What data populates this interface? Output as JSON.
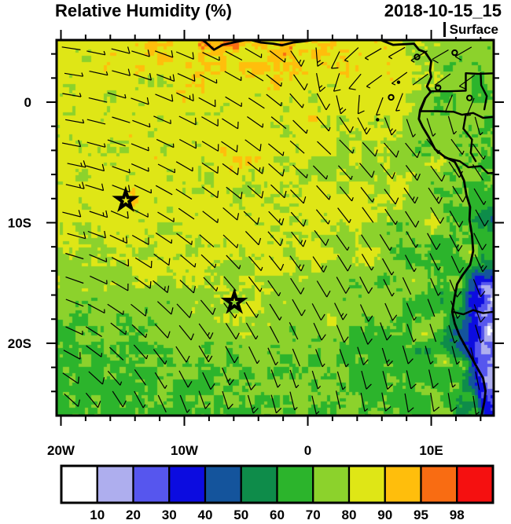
{
  "header": {
    "title": "Relative Humidity (%)",
    "datetime": "2018-10-15_15",
    "level": "Surface"
  },
  "chart_data": {
    "type": "heatmap",
    "title": "Relative Humidity (%)",
    "datetime": "2018-10-15_15",
    "level": "Surface",
    "proj": {
      "lon_min": -20.35,
      "lon_max": 15.06,
      "lat_min": -26.0,
      "lat_max": 5.15
    },
    "x_ticks": [
      {
        "v": -20,
        "label": "20W"
      },
      {
        "v": -10,
        "label": "10W"
      },
      {
        "v": 0,
        "label": "0"
      },
      {
        "v": 10,
        "label": "10E"
      }
    ],
    "y_ticks": [
      {
        "v": 0,
        "label": "0"
      },
      {
        "v": -10,
        "label": "10S"
      },
      {
        "v": -20,
        "label": "20S"
      }
    ],
    "minor_step": 2,
    "colorbar": {
      "labels": [
        10,
        20,
        30,
        40,
        50,
        60,
        70,
        80,
        90,
        95,
        98
      ],
      "colors": [
        "#ffffff",
        "#aeaeee",
        "#5656ee",
        "#0c0ce0",
        "#14549c",
        "#0e8c4a",
        "#2cb42c",
        "#8cd22c",
        "#dfe616",
        "#ffbe0c",
        "#f96c12",
        "#f51010"
      ]
    },
    "rh_points": [
      [
        -19.5,
        4.6,
        84
      ],
      [
        -16,
        3.5,
        85
      ],
      [
        -12.5,
        4.6,
        90
      ],
      [
        -9.5,
        4.0,
        88
      ],
      [
        -8,
        4.5,
        92
      ],
      [
        -5.5,
        4.8,
        94
      ],
      [
        -3.5,
        3.8,
        89
      ],
      [
        -2,
        4.4,
        92
      ],
      [
        1,
        4.7,
        93
      ],
      [
        3.5,
        3.8,
        89
      ],
      [
        5.5,
        4.5,
        88
      ],
      [
        7,
        3,
        87
      ],
      [
        -19,
        0.5,
        84
      ],
      [
        -15,
        -1,
        84
      ],
      [
        -17,
        -4,
        83
      ],
      [
        -13.3,
        -4,
        86
      ],
      [
        -10,
        -1.5,
        85
      ],
      [
        -5,
        -1,
        86
      ],
      [
        -5.8,
        -4.6,
        88
      ],
      [
        0,
        -1.5,
        86
      ],
      [
        4,
        -1,
        87
      ],
      [
        6.5,
        0,
        87
      ],
      [
        -19.8,
        -9,
        85
      ],
      [
        -17,
        -7,
        85
      ],
      [
        -14.5,
        -8,
        88
      ],
      [
        -11,
        -7.5,
        85
      ],
      [
        -8,
        -9,
        84
      ],
      [
        -4,
        -8,
        84
      ],
      [
        -3.9,
        -11,
        86
      ],
      [
        0,
        -8,
        84
      ],
      [
        4,
        -8.8,
        87
      ],
      [
        7.5,
        -7,
        84
      ],
      [
        10,
        -10,
        84
      ],
      [
        -19,
        -13,
        79
      ],
      [
        -14,
        -13,
        81
      ],
      [
        -9,
        -13,
        83
      ],
      [
        -4,
        -14,
        83
      ],
      [
        1,
        -13,
        84
      ],
      [
        5,
        -13,
        84
      ],
      [
        9,
        -15,
        85
      ],
      [
        -19,
        -19,
        68
      ],
      [
        -14,
        -19,
        70
      ],
      [
        -9,
        -18,
        75
      ],
      [
        -6,
        -16.5,
        82
      ],
      [
        -3,
        -19,
        77
      ],
      [
        2,
        -18,
        78
      ],
      [
        6,
        -17,
        80
      ],
      [
        10.8,
        -18,
        84
      ],
      [
        -19.5,
        -24,
        66
      ],
      [
        -15,
        -23.5,
        67
      ],
      [
        -10,
        -24,
        68
      ],
      [
        -5,
        -24,
        70
      ],
      [
        -1,
        -23,
        73
      ],
      [
        3,
        -24,
        71
      ],
      [
        7,
        -23,
        74
      ],
      [
        10,
        -24.5,
        77
      ],
      [
        -19.5,
        -26,
        65
      ],
      [
        -12,
        -26,
        67
      ],
      [
        -7,
        -26,
        69
      ],
      [
        -2,
        -26,
        70
      ],
      [
        6,
        -26,
        73
      ],
      [
        11,
        -26,
        78
      ],
      [
        9.5,
        -19,
        83
      ],
      [
        11,
        -21.5,
        81
      ],
      [
        12,
        -23.5,
        79
      ],
      [
        12.6,
        -21.8,
        79
      ],
      [
        13.3,
        -24.5,
        77
      ],
      [
        13.6,
        -25.8,
        75
      ],
      [
        12.0,
        -15.1,
        90
      ],
      [
        13.2,
        -12.5,
        87
      ],
      [
        9.8,
        2.5,
        78
      ],
      [
        13,
        3.5,
        72
      ],
      [
        15,
        4.5,
        74
      ],
      [
        11,
        0.5,
        72
      ],
      [
        14,
        1,
        68
      ],
      [
        15,
        -1,
        70
      ],
      [
        11.5,
        -2.5,
        74
      ],
      [
        14,
        -3.5,
        72
      ],
      [
        10.8,
        -5,
        78
      ],
      [
        13,
        -6,
        73
      ],
      [
        15,
        -6.5,
        70
      ],
      [
        12.5,
        -8,
        74
      ],
      [
        14.8,
        -9.6,
        42
      ],
      [
        13.5,
        -9,
        68
      ],
      [
        15.2,
        -8,
        66
      ],
      [
        13,
        -11,
        68
      ],
      [
        14.6,
        -12,
        62
      ],
      [
        14,
        -13.5,
        62
      ],
      [
        15.2,
        -12.5,
        60
      ],
      [
        13.8,
        -14.5,
        38
      ],
      [
        14.5,
        -15.3,
        6
      ],
      [
        15.2,
        -16.5,
        4
      ],
      [
        14.2,
        -17.5,
        5
      ],
      [
        14.8,
        -19,
        3
      ],
      [
        14.2,
        -20.5,
        6
      ],
      [
        15,
        -21.5,
        8
      ],
      [
        15.3,
        -22.8,
        8
      ],
      [
        13.6,
        -16.2,
        25
      ],
      [
        13.2,
        -17.3,
        35
      ],
      [
        13.0,
        -18.8,
        30
      ],
      [
        13.5,
        -20,
        25
      ],
      [
        13.7,
        -21.3,
        30
      ],
      [
        14.0,
        -22,
        18
      ],
      [
        14.8,
        -23.2,
        12
      ],
      [
        14.2,
        -24.4,
        20
      ],
      [
        15.2,
        -25,
        18
      ],
      [
        14.5,
        -25.6,
        28
      ],
      [
        13.1,
        -19.8,
        45
      ],
      [
        12.4,
        -17.8,
        58
      ],
      [
        12.6,
        -18.6,
        52
      ],
      [
        12.2,
        -16.8,
        70
      ],
      [
        12.1,
        -15.8,
        68
      ],
      [
        11.9,
        -17.2,
        65
      ]
    ],
    "noise": {
      "amp1": 7,
      "amp2": 6,
      "cell1": 1.1,
      "cell2": 0.38
    },
    "coastlines": [
      [
        [
          5.8,
          5.2
        ],
        [
          6.9,
          4.75
        ],
        [
          8.6,
          4.85
        ],
        [
          9.0,
          4.35
        ],
        [
          9.5,
          4.15
        ],
        [
          10.0,
          3.4
        ],
        [
          9.9,
          2.6
        ],
        [
          10.0,
          2.1
        ],
        [
          9.65,
          1.3
        ],
        [
          9.95,
          0.85
        ],
        [
          9.5,
          0.3
        ],
        [
          9.1,
          -0.65
        ],
        [
          9.0,
          -1.4
        ],
        [
          9.3,
          -2.05
        ],
        [
          9.8,
          -2.9
        ],
        [
          10.3,
          -3.9
        ],
        [
          11.1,
          -4.55
        ],
        [
          11.9,
          -4.95
        ],
        [
          12.2,
          -5.5
        ],
        [
          12.65,
          -6.5
        ],
        [
          12.85,
          -7.7
        ],
        [
          13.15,
          -8.7
        ],
        [
          13.1,
          -9.75
        ],
        [
          13.3,
          -11.05
        ],
        [
          13.4,
          -12.35
        ],
        [
          13.15,
          -13.5
        ],
        [
          12.5,
          -14.4
        ],
        [
          12.1,
          -15.1
        ],
        [
          11.9,
          -16.1
        ],
        [
          11.7,
          -17.4
        ],
        [
          11.9,
          -18.35
        ],
        [
          12.3,
          -19.4
        ],
        [
          13.0,
          -20.7
        ],
        [
          13.65,
          -21.9
        ],
        [
          14.2,
          -22.9
        ],
        [
          14.4,
          -23.95
        ],
        [
          14.3,
          -24.85
        ],
        [
          14.05,
          -26.1
        ]
      ],
      [
        [
          -8.6,
          5.2
        ],
        [
          -8.2,
          4.9
        ],
        [
          -7.6,
          4.35
        ],
        [
          -6.9,
          4.75
        ],
        [
          -5.8,
          5.0
        ],
        [
          -4.8,
          5.2
        ],
        [
          -3.8,
          4.95
        ],
        [
          -2.8,
          4.85
        ],
        [
          -2.1,
          4.72
        ],
        [
          -1.2,
          4.95
        ],
        [
          -0.3,
          5.05
        ],
        [
          0.8,
          5.2
        ]
      ]
    ],
    "borders": [
      [
        [
          10.0,
          0.9
        ],
        [
          11.5,
          0.9
        ],
        [
          12.8,
          0.95
        ],
        [
          12.8,
          2.4
        ],
        [
          13.8,
          2.35
        ],
        [
          15.3,
          2.4
        ]
      ],
      [
        [
          9.1,
          -0.75
        ],
        [
          10.5,
          -0.75
        ],
        [
          11.8,
          -0.8
        ],
        [
          12.5,
          -1.05
        ],
        [
          13.4,
          -0.9
        ],
        [
          14.2,
          -1.3
        ],
        [
          15.3,
          -1.2
        ]
      ],
      [
        [
          12.8,
          -1.05
        ],
        [
          12.6,
          -2.2
        ],
        [
          13.3,
          -3.1
        ],
        [
          13.2,
          -4.2
        ],
        [
          13.6,
          -4.9
        ]
      ],
      [
        [
          11.1,
          -4.6
        ],
        [
          12.3,
          -4.9
        ],
        [
          13.0,
          -5.4
        ],
        [
          14.0,
          -5.3
        ],
        [
          14.6,
          -5.9
        ],
        [
          15.3,
          -5.85
        ]
      ],
      [
        [
          14.0,
          2.4
        ],
        [
          14.05,
          1.4
        ],
        [
          14.5,
          0.5
        ],
        [
          14.3,
          -0.6
        ]
      ],
      [
        [
          11.75,
          -17.4
        ],
        [
          12.6,
          -17.6
        ],
        [
          13.4,
          -17.25
        ],
        [
          14.2,
          -17.5
        ],
        [
          15.3,
          -17.35
        ]
      ]
    ],
    "islands": [
      {
        "lon": 8.85,
        "lat": 3.75,
        "t": "ring"
      },
      {
        "lon": 11.9,
        "lat": 4.1,
        "t": "ring"
      },
      {
        "lon": 7.35,
        "lat": 1.65,
        "t": "dot"
      },
      {
        "lon": 6.75,
        "lat": 0.4,
        "t": "ring"
      },
      {
        "lon": 10.55,
        "lat": 1.2,
        "t": "ring"
      },
      {
        "lon": 13.1,
        "lat": 0.35,
        "t": "ring"
      },
      {
        "lon": 5.65,
        "lat": -1.45,
        "t": "dot"
      }
    ],
    "stars": [
      [
        -14.75,
        -8.15
      ],
      [
        -5.95,
        -16.6
      ]
    ],
    "wind": {
      "circulation_center": [
        -25,
        -30
      ],
      "monsoon_flow": [
        0.86,
        0.5
      ],
      "grid_step_lon": 1.84,
      "grid_step_lat": 1.9,
      "base_speed_kt": 10,
      "speed_var_kt": 5
    }
  }
}
